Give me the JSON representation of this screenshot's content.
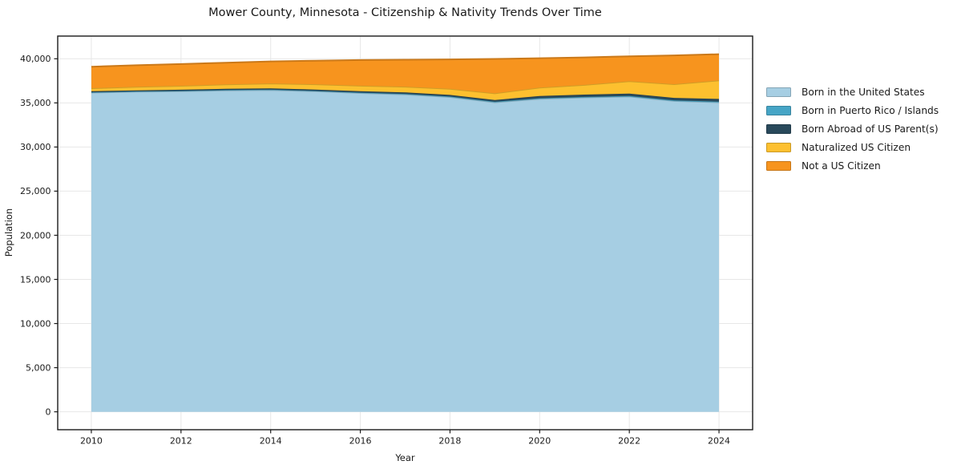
{
  "page": {
    "background": "#ffffff"
  },
  "chart_data": {
    "type": "area",
    "stacked": true,
    "title": "Mower County, Minnesota - Citizenship & Nativity Trends Over Time",
    "xlabel": "Year",
    "ylabel": "Population",
    "grid": true,
    "legend_position": "outside-right",
    "x": [
      2010,
      2011,
      2012,
      2013,
      2014,
      2015,
      2016,
      2017,
      2018,
      2019,
      2020,
      2021,
      2022,
      2023,
      2024
    ],
    "x_range": [
      2009.25,
      2024.75
    ],
    "y_range": [
      -2030,
      42570
    ],
    "x_ticks": [
      {
        "v": 2010,
        "label": "2010"
      },
      {
        "v": 2012,
        "label": "2012"
      },
      {
        "v": 2014,
        "label": "2014"
      },
      {
        "v": 2016,
        "label": "2016"
      },
      {
        "v": 2018,
        "label": "2018"
      },
      {
        "v": 2020,
        "label": "2020"
      },
      {
        "v": 2022,
        "label": "2022"
      },
      {
        "v": 2024,
        "label": "2024"
      }
    ],
    "y_ticks": [
      {
        "v": 0,
        "label": "0"
      },
      {
        "v": 5000,
        "label": "5,000"
      },
      {
        "v": 10000,
        "label": "10,000"
      },
      {
        "v": 15000,
        "label": "15,000"
      },
      {
        "v": 20000,
        "label": "20,000"
      },
      {
        "v": 25000,
        "label": "25,000"
      },
      {
        "v": 30000,
        "label": "30,000"
      },
      {
        "v": 35000,
        "label": "35,000"
      },
      {
        "v": 40000,
        "label": "40,000"
      }
    ],
    "colors": {
      "grid": "#e7e7e7",
      "spine": "#1a1a1a",
      "text": "#1a1a1a"
    },
    "series": [
      {
        "id": "born-us",
        "name": "Born in the United States",
        "color": "#a6cee3",
        "values": [
          36150,
          36250,
          36300,
          36400,
          36450,
          36300,
          36100,
          35950,
          35650,
          35050,
          35450,
          35600,
          35700,
          35200,
          35050
        ]
      },
      {
        "id": "born-puerto-rico",
        "name": "Born in Puerto Rico / Islands",
        "color": "#46a5c6",
        "values": [
          50,
          50,
          60,
          60,
          60,
          60,
          70,
          70,
          70,
          80,
          80,
          80,
          90,
          90,
          100
        ]
      },
      {
        "id": "born-abroad",
        "name": "Born Abroad of US Parent(s)",
        "color": "#29495b",
        "values": [
          120,
          120,
          130,
          130,
          140,
          150,
          160,
          170,
          180,
          200,
          250,
          260,
          270,
          280,
          300
        ]
      },
      {
        "id": "naturalized",
        "name": "Naturalized US Citizen",
        "color": "#fdc02f",
        "values": [
          350,
          400,
          450,
          500,
          550,
          600,
          620,
          650,
          700,
          750,
          950,
          1100,
          1400,
          1550,
          2100
        ]
      },
      {
        "id": "not-citizen",
        "name": "Not a US Citizen",
        "color": "#f7941e",
        "values": [
          2430,
          2440,
          2460,
          2460,
          2500,
          2670,
          2900,
          3050,
          3330,
          3900,
          3330,
          3110,
          2820,
          3260,
          2970
        ]
      }
    ]
  }
}
